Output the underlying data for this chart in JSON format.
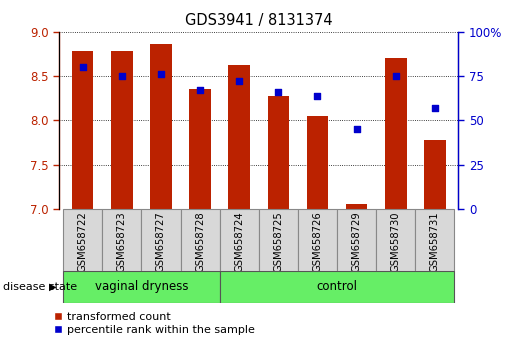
{
  "title": "GDS3941 / 8131374",
  "samples": [
    "GSM658722",
    "GSM658723",
    "GSM658727",
    "GSM658728",
    "GSM658724",
    "GSM658725",
    "GSM658726",
    "GSM658729",
    "GSM658730",
    "GSM658731"
  ],
  "bar_values": [
    8.78,
    8.78,
    8.86,
    8.35,
    8.62,
    8.27,
    8.05,
    7.05,
    8.7,
    7.78
  ],
  "dot_values": [
    80,
    75,
    76,
    67,
    72,
    66,
    64,
    45,
    75,
    57
  ],
  "ylim": [
    7.0,
    9.0
  ],
  "y2lim": [
    0,
    100
  ],
  "yticks": [
    7.0,
    7.5,
    8.0,
    8.5,
    9.0
  ],
  "y2ticks": [
    0,
    25,
    50,
    75,
    100
  ],
  "bar_color": "#bb2200",
  "dot_color": "#0000cc",
  "group1_label": "vaginal dryness",
  "group2_label": "control",
  "group1_count": 4,
  "group2_count": 6,
  "disease_state_label": "disease state",
  "legend_bar_label": "transformed count",
  "legend_dot_label": "percentile rank within the sample",
  "bg_color_group": "#d8d8d8",
  "green_color": "#66ee66",
  "bar_width": 0.55
}
